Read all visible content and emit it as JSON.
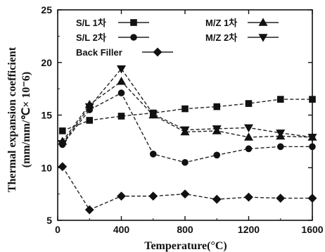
{
  "chart_data": {
    "type": "line",
    "xlabel": "Temperature(°C)",
    "ylabel_line1": "Thermal expansion coefficient",
    "ylabel_line2": "(mm/mm/℃× 10⁻6)",
    "xlim": [
      0,
      1600
    ],
    "ylim": [
      5,
      25
    ],
    "xticks": [
      0,
      400,
      800,
      1200,
      1600
    ],
    "yticks": [
      5,
      10,
      15,
      20,
      25
    ],
    "grid": false,
    "legend_position": "top-right",
    "series": [
      {
        "name": "S/L 1차",
        "marker": "square",
        "x": [
          30,
          200,
          400,
          600,
          800,
          1000,
          1200,
          1400,
          1600
        ],
        "y": [
          13.5,
          14.5,
          14.9,
          15.2,
          15.6,
          15.8,
          16.1,
          16.5,
          16.5
        ]
      },
      {
        "name": "S/L 2차",
        "marker": "circle",
        "x": [
          30,
          200,
          400,
          600,
          800,
          1000,
          1200,
          1400,
          1600
        ],
        "y": [
          12.2,
          15.5,
          17.1,
          11.3,
          10.5,
          11.2,
          11.8,
          12.0,
          12.0
        ]
      },
      {
        "name": "M/Z 1차",
        "marker": "triangle-up",
        "x": [
          30,
          200,
          400,
          600,
          800,
          1000,
          1200,
          1400,
          1600
        ],
        "y": [
          12.5,
          16.0,
          18.2,
          15.0,
          13.4,
          13.5,
          12.9,
          13.0,
          12.9
        ]
      },
      {
        "name": "M/Z 2차",
        "marker": "triangle-down",
        "x": [
          30,
          200,
          400,
          600,
          800,
          1000,
          1200,
          1400,
          1600
        ],
        "y": [
          12.3,
          15.8,
          19.4,
          15.1,
          13.6,
          13.7,
          13.8,
          13.3,
          12.9
        ]
      },
      {
        "name": "Back Filler",
        "marker": "diamond",
        "x": [
          30,
          200,
          400,
          600,
          800,
          1000,
          1200,
          1400,
          1600
        ],
        "y": [
          10.1,
          6.0,
          7.3,
          7.3,
          7.5,
          7.0,
          7.2,
          7.1,
          7.1
        ]
      }
    ]
  }
}
